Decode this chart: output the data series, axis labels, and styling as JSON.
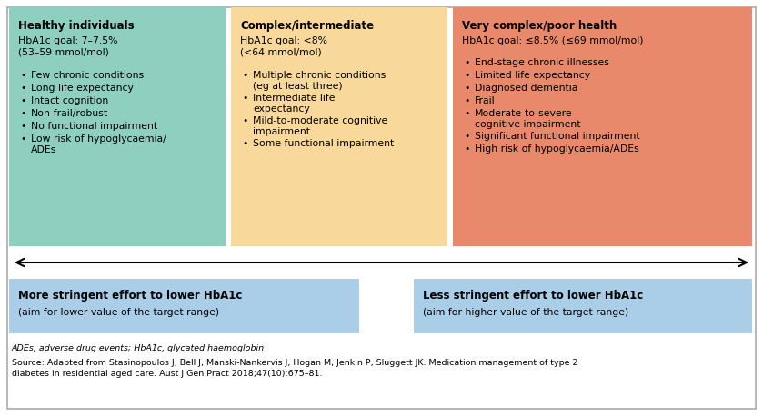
{
  "fig_width": 8.39,
  "fig_height": 4.58,
  "dpi": 100,
  "bg_color": "#ffffff",
  "border_color": "#aaaaaa",
  "box1": {
    "color": "#8ecfc0",
    "title": "Healthy individuals",
    "goal": "HbA1c goal: 7–7.5%\n(53–59 mmol/mol)",
    "bullets": [
      "Few chronic conditions",
      "Long life expectancy",
      "Intact cognition",
      "Non-frail/robust",
      "No functional impairment",
      "Low risk of hypoglycaemia/\nADEs"
    ]
  },
  "box2": {
    "color": "#f9d89c",
    "title": "Complex/intermediate",
    "goal": "HbA1c goal: <8%\n(<64 mmol/mol)",
    "bullets": [
      "Multiple chronic conditions\n(eg at least three)",
      "Intermediate life\nexpectancy",
      "Mild-to-moderate cognitive\nimpairment",
      "Some functional impairment"
    ]
  },
  "box3": {
    "color": "#e8896b",
    "title": "Very complex/poor health",
    "goal": "HbA1c goal: ≤8.5% (≤69 mmol/mol)",
    "bullets": [
      "End-stage chronic illnesses",
      "Limited life expectancy",
      "Diagnosed dementia",
      "Frail",
      "Moderate-to-severe\ncognitive impairment",
      "Significant functional impairment",
      "High risk of hypoglycaemia/ADEs"
    ]
  },
  "bottom_left": {
    "color": "#aacde8",
    "title": "More stringent effort to lower HbA1c",
    "subtitle": "(aim for lower value of the target range)"
  },
  "bottom_right": {
    "color": "#aacde8",
    "title": "Less stringent effort to lower HbA1c",
    "subtitle": "(aim for higher value of the target range)"
  },
  "footnote1": "ADEs, adverse drug events; HbA1c, glycated haemoglobin",
  "footnote2": "Source: Adapted from Stasinopoulos J, Bell J, Manski-Nankervis J, Hogan M, Jenkin P, Sluggett JK. Medication management of type 2\ndiabetes in residential aged care. Aust J Gen Pract 2018;47(10):675–81."
}
